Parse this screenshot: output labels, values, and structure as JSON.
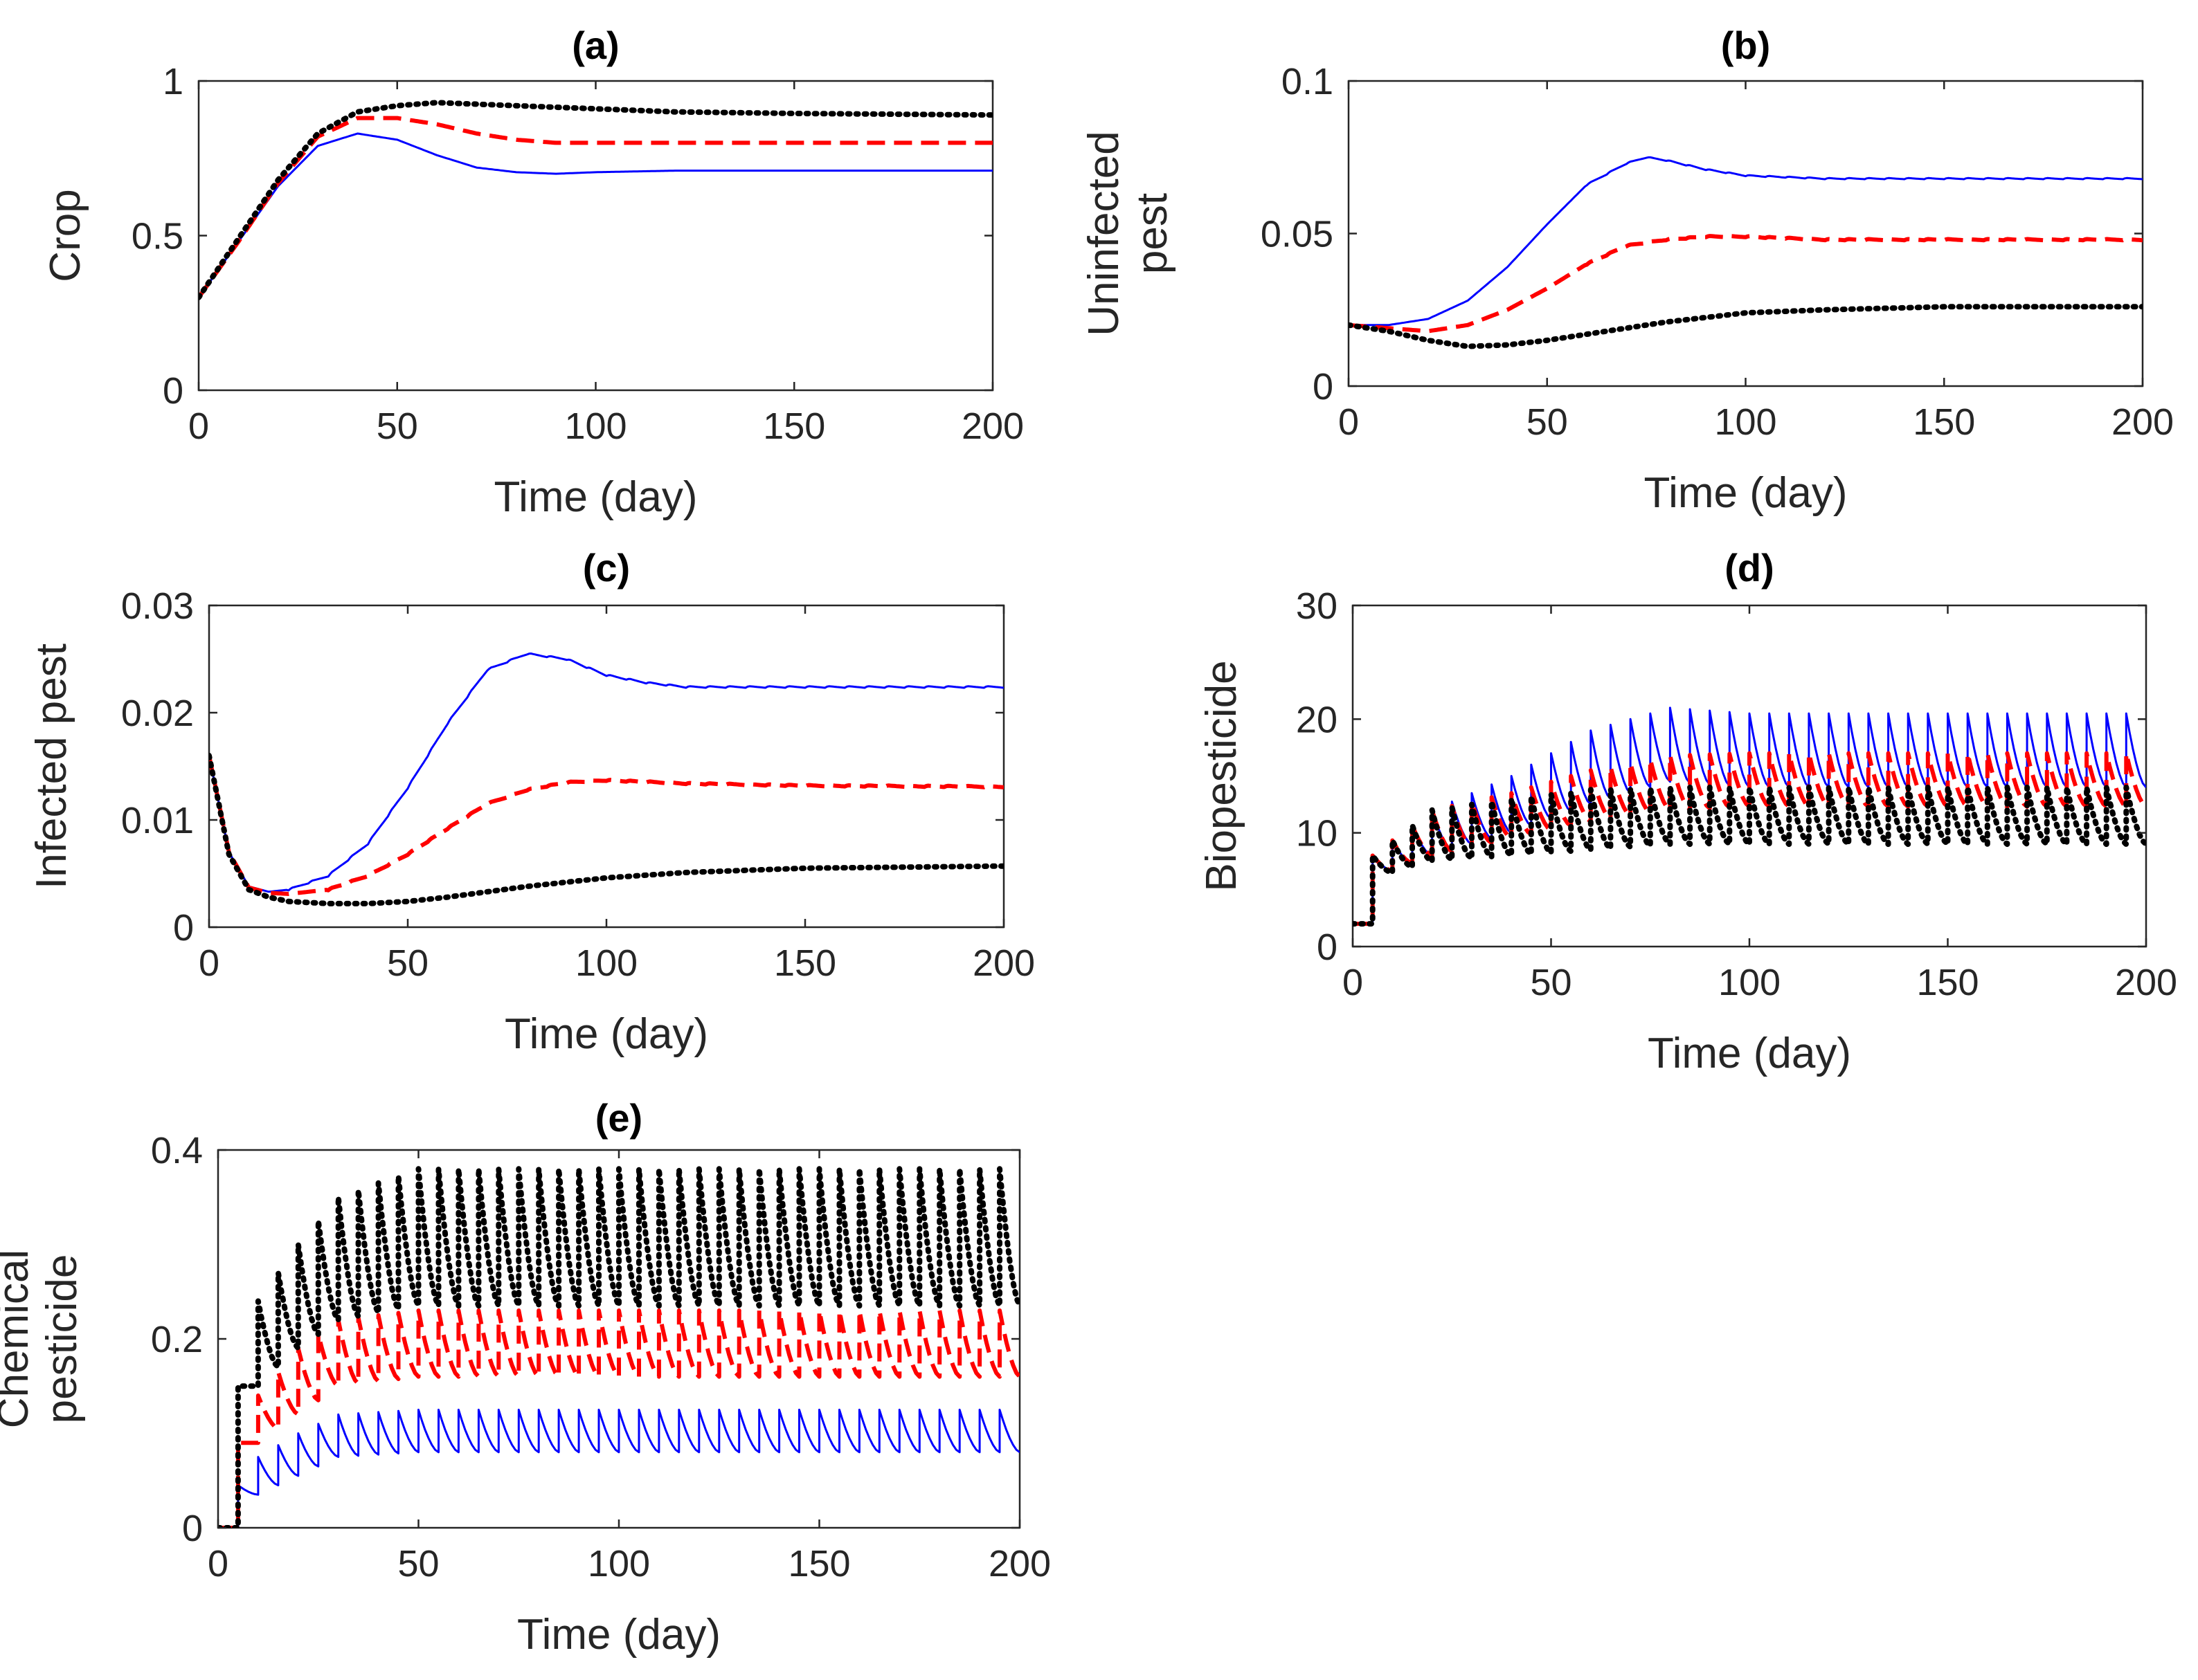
{
  "figure": {
    "series_styles": [
      {
        "name": "blue",
        "color": "#0000FF",
        "dash": "solid"
      },
      {
        "name": "red",
        "color": "#FF0000",
        "dash": "dashed"
      },
      {
        "name": "black",
        "color": "#000000",
        "dash": "dotted"
      }
    ]
  },
  "chart_data": [
    {
      "id": "a",
      "type": "line",
      "title": "(a)",
      "xlabel": "Time (day)",
      "ylabel": [
        "Crop"
      ],
      "xlim": [
        0,
        200
      ],
      "ylim": [
        0,
        1
      ],
      "xticks": [
        0,
        50,
        100,
        150,
        200
      ],
      "xtick_labels": [
        "0",
        "50",
        "100",
        "150",
        "200"
      ],
      "yticks": [
        0,
        0.5,
        1
      ],
      "ytick_labels": [
        "0",
        "0.5",
        "1"
      ],
      "series": [
        {
          "name": "blue",
          "color": "#0000FF",
          "dash": "solid",
          "x": [
            0,
            10,
            20,
            30,
            40,
            50,
            60,
            70,
            80,
            90,
            100,
            120,
            150,
            200
          ],
          "y": [
            0.3,
            0.48,
            0.66,
            0.79,
            0.83,
            0.81,
            0.76,
            0.72,
            0.705,
            0.7,
            0.705,
            0.71,
            0.71,
            0.71
          ]
        },
        {
          "name": "red",
          "color": "#FF0000",
          "dash": "dashed",
          "x": [
            0,
            10,
            20,
            30,
            40,
            50,
            60,
            70,
            80,
            90,
            100,
            120,
            150,
            200
          ],
          "y": [
            0.3,
            0.48,
            0.67,
            0.82,
            0.88,
            0.88,
            0.86,
            0.83,
            0.81,
            0.8,
            0.8,
            0.8,
            0.8,
            0.8
          ]
        },
        {
          "name": "black",
          "color": "#000000",
          "dash": "dotted",
          "x": [
            0,
            10,
            20,
            30,
            40,
            50,
            60,
            70,
            80,
            100,
            120,
            150,
            200
          ],
          "y": [
            0.3,
            0.49,
            0.68,
            0.83,
            0.9,
            0.92,
            0.93,
            0.925,
            0.92,
            0.91,
            0.9,
            0.895,
            0.89
          ]
        }
      ]
    },
    {
      "id": "b",
      "type": "line",
      "title": "(b)",
      "xlabel": "Time (day)",
      "ylabel": [
        "Uninfected",
        "pest"
      ],
      "xlim": [
        0,
        200
      ],
      "ylim": [
        0,
        0.1
      ],
      "xticks": [
        0,
        50,
        100,
        150,
        200
      ],
      "xtick_labels": [
        "0",
        "50",
        "100",
        "150",
        "200"
      ],
      "yticks": [
        0,
        0.05,
        0.1
      ],
      "ytick_labels": [
        "0",
        "0.05",
        "0.1"
      ],
      "series": [
        {
          "name": "blue",
          "color": "#0000FF",
          "dash": "solid",
          "ripple_amp": 0.0004,
          "ripple_period": 5,
          "ripple_start": 60,
          "x": [
            0,
            10,
            20,
            30,
            40,
            50,
            60,
            70,
            75,
            80,
            90,
            100,
            120,
            150,
            200
          ],
          "y": [
            0.02,
            0.02,
            0.022,
            0.028,
            0.039,
            0.053,
            0.066,
            0.073,
            0.075,
            0.074,
            0.071,
            0.069,
            0.068,
            0.068,
            0.068
          ]
        },
        {
          "name": "red",
          "color": "#FF0000",
          "dash": "dashed",
          "ripple_amp": 0.0004,
          "ripple_period": 5,
          "ripple_start": 60,
          "x": [
            0,
            10,
            20,
            30,
            40,
            50,
            60,
            70,
            80,
            90,
            100,
            120,
            150,
            200
          ],
          "y": [
            0.02,
            0.019,
            0.018,
            0.02,
            0.025,
            0.032,
            0.04,
            0.046,
            0.048,
            0.049,
            0.049,
            0.048,
            0.048,
            0.048
          ]
        },
        {
          "name": "black",
          "color": "#000000",
          "dash": "dotted",
          "x": [
            0,
            10,
            20,
            30,
            40,
            50,
            60,
            70,
            80,
            100,
            120,
            150,
            200
          ],
          "y": [
            0.02,
            0.018,
            0.015,
            0.013,
            0.0135,
            0.015,
            0.017,
            0.019,
            0.021,
            0.024,
            0.025,
            0.026,
            0.026
          ]
        }
      ]
    },
    {
      "id": "c",
      "type": "line",
      "title": "(c)",
      "xlabel": "Time (day)",
      "ylabel": [
        "Infected pest"
      ],
      "xlim": [
        0,
        200
      ],
      "ylim": [
        0,
        0.03
      ],
      "xticks": [
        0,
        50,
        100,
        150,
        200
      ],
      "xtick_labels": [
        "0",
        "50",
        "100",
        "150",
        "200"
      ],
      "yticks": [
        0,
        0.01,
        0.02,
        0.03
      ],
      "ytick_labels": [
        "0",
        "0.01",
        "0.02",
        "0.03"
      ],
      "series": [
        {
          "name": "blue",
          "color": "#0000FF",
          "dash": "solid",
          "ripple_amp": 0.00015,
          "ripple_period": 5,
          "ripple_start": 20,
          "x": [
            0,
            5,
            10,
            15,
            20,
            30,
            40,
            50,
            60,
            70,
            80,
            90,
            100,
            110,
            120,
            150,
            200
          ],
          "y": [
            0.016,
            0.007,
            0.0038,
            0.0033,
            0.0035,
            0.0048,
            0.0078,
            0.013,
            0.019,
            0.024,
            0.0255,
            0.025,
            0.0235,
            0.0228,
            0.0224,
            0.0224,
            0.0224
          ]
        },
        {
          "name": "red",
          "color": "#FF0000",
          "dash": "dashed",
          "ripple_amp": 0.00012,
          "ripple_period": 5,
          "ripple_start": 30,
          "x": [
            0,
            5,
            10,
            15,
            20,
            30,
            40,
            50,
            60,
            70,
            80,
            90,
            100,
            120,
            150,
            200
          ],
          "y": [
            0.016,
            0.007,
            0.0037,
            0.0032,
            0.0031,
            0.0035,
            0.0048,
            0.0068,
            0.0092,
            0.0115,
            0.0128,
            0.0135,
            0.0137,
            0.0134,
            0.0132,
            0.0131
          ]
        },
        {
          "name": "black",
          "color": "#000000",
          "dash": "dotted",
          "x": [
            0,
            5,
            10,
            15,
            20,
            30,
            40,
            50,
            60,
            70,
            80,
            100,
            120,
            150,
            200
          ],
          "y": [
            0.016,
            0.0068,
            0.0035,
            0.0028,
            0.0024,
            0.0022,
            0.0022,
            0.0024,
            0.0028,
            0.0033,
            0.0038,
            0.0046,
            0.0051,
            0.0055,
            0.0057
          ]
        }
      ]
    },
    {
      "id": "d",
      "type": "line",
      "title": "(d)",
      "xlabel": "Time (day)",
      "ylabel": [
        "Biopesticide"
      ],
      "xlim": [
        0,
        200
      ],
      "ylim": [
        0,
        30
      ],
      "xticks": [
        0,
        50,
        100,
        150,
        200
      ],
      "xtick_labels": [
        "0",
        "50",
        "100",
        "150",
        "200"
      ],
      "yticks": [
        0,
        10,
        20,
        30
      ],
      "ytick_labels": [
        "0",
        "10",
        "20",
        "30"
      ],
      "pulse_start": 5,
      "pulse_period": 5,
      "initial": 2,
      "series": [
        {
          "name": "blue",
          "color": "#0000FF",
          "dash": "solid",
          "env_x": [
            5,
            20,
            40,
            60,
            80,
            100,
            150,
            200
          ],
          "env_peak": [
            8,
            12,
            15,
            19,
            21,
            20.5,
            20.5,
            20.5
          ],
          "env_trough": [
            6,
            8,
            10,
            12.5,
            14.5,
            14,
            14,
            14
          ]
        },
        {
          "name": "red",
          "color": "#FF0000",
          "dash": "dashed",
          "env_x": [
            5,
            20,
            40,
            60,
            80,
            100,
            150,
            200
          ],
          "env_peak": [
            8,
            12,
            13.5,
            15.5,
            16.8,
            17,
            17,
            17
          ],
          "env_trough": [
            6,
            8,
            9.5,
            11,
            12,
            12.3,
            12.3,
            12.3
          ]
        },
        {
          "name": "black",
          "color": "#000000",
          "dash": "dotted",
          "env_x": [
            5,
            20,
            40,
            60,
            80,
            100,
            150,
            200
          ],
          "env_peak": [
            8,
            12,
            13,
            13.8,
            14,
            14,
            14,
            14
          ],
          "env_trough": [
            6,
            7.5,
            8,
            8.5,
            9,
            9,
            9,
            9
          ]
        }
      ]
    },
    {
      "id": "e",
      "type": "line",
      "title": "(e)",
      "xlabel": "Time (day)",
      "ylabel": [
        "Chemical",
        "pesticide"
      ],
      "xlim": [
        0,
        200
      ],
      "ylim": [
        0,
        0.4
      ],
      "xticks": [
        0,
        50,
        100,
        150,
        200
      ],
      "xtick_labels": [
        "0",
        "50",
        "100",
        "150",
        "200"
      ],
      "yticks": [
        0,
        0.2,
        0.4
      ],
      "ytick_labels": [
        "0",
        "0.2",
        "0.4"
      ],
      "pulse_start": 5,
      "pulse_period": 5,
      "initial": 0,
      "series": [
        {
          "name": "blue",
          "color": "#0000FF",
          "dash": "solid",
          "env_x": [
            5,
            10,
            20,
            30,
            50,
            100,
            200
          ],
          "env_peak": [
            0.045,
            0.075,
            0.1,
            0.12,
            0.125,
            0.125,
            0.125
          ],
          "env_trough": [
            0.02,
            0.035,
            0.055,
            0.075,
            0.08,
            0.08,
            0.08
          ]
        },
        {
          "name": "red",
          "color": "#FF0000",
          "dash": "dashed",
          "env_x": [
            5,
            10,
            20,
            30,
            50,
            100,
            200
          ],
          "env_peak": [
            0.09,
            0.14,
            0.19,
            0.22,
            0.23,
            0.23,
            0.23
          ],
          "env_trough": [
            0.06,
            0.09,
            0.12,
            0.15,
            0.16,
            0.16,
            0.16
          ]
        },
        {
          "name": "black",
          "color": "#000000",
          "dash": "dotted",
          "env_x": [
            5,
            10,
            20,
            30,
            50,
            100,
            200
          ],
          "env_peak": [
            0.15,
            0.24,
            0.3,
            0.35,
            0.38,
            0.38,
            0.38
          ],
          "env_trough": [
            0.1,
            0.15,
            0.19,
            0.22,
            0.235,
            0.235,
            0.235
          ]
        }
      ]
    }
  ]
}
